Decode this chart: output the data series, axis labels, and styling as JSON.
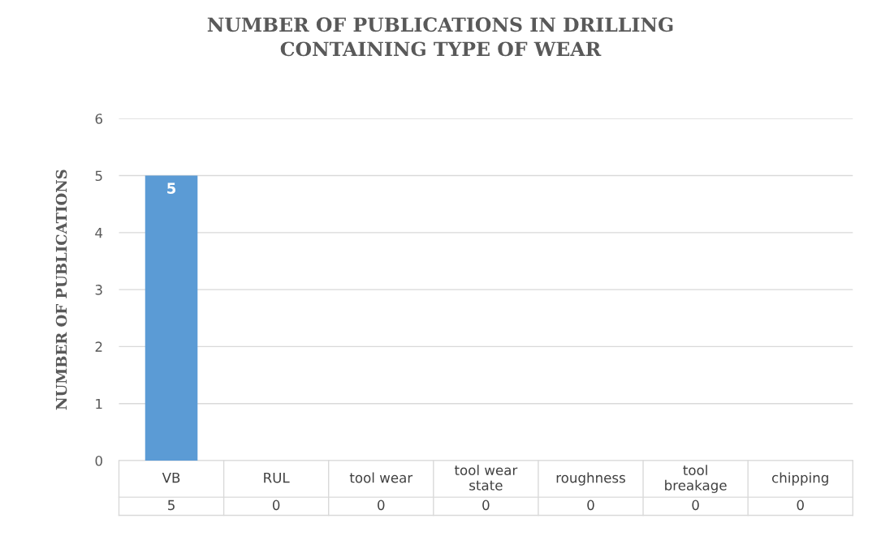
{
  "chart_data": {
    "type": "bar",
    "title": "NUMBER OF PUBLICATIONS IN DRILLING\nCONTAINING TYPE OF WEAR",
    "ylabel": "NUMBER OF PUBLICATIONS",
    "categories": [
      "VB",
      "RUL",
      "tool wear",
      "tool wear state",
      "roughness",
      "tool breakage",
      "chipping"
    ],
    "values": [
      5,
      0,
      0,
      0,
      0,
      0,
      0
    ],
    "value_labels": [
      "5",
      "0",
      "0",
      "0",
      "0",
      "0",
      "0"
    ],
    "color": "#5b9bd5",
    "ylim": [
      0,
      6
    ],
    "yticks": [
      0,
      1,
      2,
      3,
      4,
      5,
      6
    ],
    "grid": "y"
  }
}
